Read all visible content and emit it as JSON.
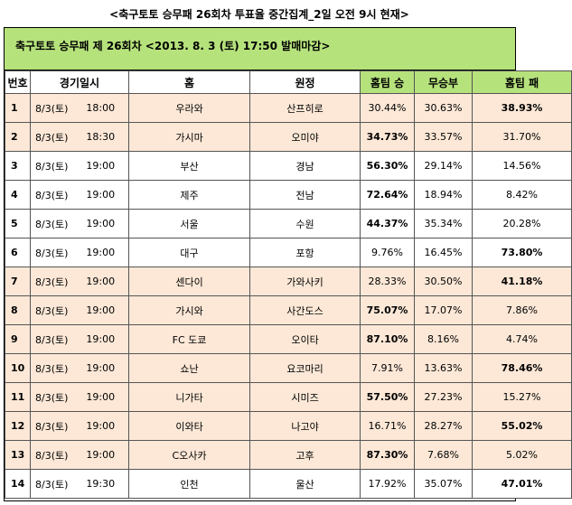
{
  "page_title": "<축구토토 승무패 26회차 투표율 중간집계_2일 오전 9시 현재>",
  "header": "축구토토 승무패 제 26회차 <2013. 8. 3 (토) 17:50 발매마감>",
  "columns": [
    "번호",
    "경기일시",
    "홈",
    "원정",
    "홈팀 승",
    "무승부",
    "홈팀 패"
  ],
  "rows": [
    {
      "no": "1",
      "date": "8/3(토)",
      "time": "18:00",
      "home": "우라와",
      "away": "산프히로",
      "win": "30.44%",
      "draw": "30.63%",
      "lose": "38.93%",
      "bold": "lose",
      "shade": "orange"
    },
    {
      "no": "2",
      "date": "8/3(토)",
      "time": "18:30",
      "home": "가시마",
      "away": "오미야",
      "win": "34.73%",
      "draw": "33.57%",
      "lose": "31.70%",
      "bold": "win",
      "shade": "orange"
    },
    {
      "no": "3",
      "date": "8/3(토)",
      "time": "19:00",
      "home": "부산",
      "away": "경남",
      "win": "56.30%",
      "draw": "29.14%",
      "lose": "14.56%",
      "bold": "win",
      "shade": "white"
    },
    {
      "no": "4",
      "date": "8/3(토)",
      "time": "19:00",
      "home": "제주",
      "away": "전남",
      "win": "72.64%",
      "draw": "18.94%",
      "lose": "8.42%",
      "bold": "win",
      "shade": "white"
    },
    {
      "no": "5",
      "date": "8/3(토)",
      "time": "19:00",
      "home": "서울",
      "away": "수원",
      "win": "44.37%",
      "draw": "35.34%",
      "lose": "20.28%",
      "bold": "win",
      "shade": "white"
    },
    {
      "no": "6",
      "date": "8/3(토)",
      "time": "19:00",
      "home": "대구",
      "away": "포항",
      "win": "9.76%",
      "draw": "16.45%",
      "lose": "73.80%",
      "bold": "lose",
      "shade": "white"
    },
    {
      "no": "7",
      "date": "8/3(토)",
      "time": "19:00",
      "home": "센다이",
      "away": "가와사키",
      "win": "28.33%",
      "draw": "30.50%",
      "lose": "41.18%",
      "bold": "lose",
      "shade": "orange"
    },
    {
      "no": "8",
      "date": "8/3(토)",
      "time": "19:00",
      "home": "가시와",
      "away": "사간도스",
      "win": "75.07%",
      "draw": "17.07%",
      "lose": "7.86%",
      "bold": "win",
      "shade": "orange"
    },
    {
      "no": "9",
      "date": "8/3(토)",
      "time": "19:00",
      "home": "FC 도쿄",
      "away": "오이타",
      "win": "87.10%",
      "draw": "8.16%",
      "lose": "4.74%",
      "bold": "win",
      "shade": "orange"
    },
    {
      "no": "10",
      "date": "8/3(토)",
      "time": "19:00",
      "home": "쇼난",
      "away": "요코마리",
      "win": "7.91%",
      "draw": "13.63%",
      "lose": "78.46%",
      "bold": "lose",
      "shade": "orange"
    },
    {
      "no": "11",
      "date": "8/3(토)",
      "time": "19:00",
      "home": "니가타",
      "away": "시미즈",
      "win": "57.50%",
      "draw": "27.23%",
      "lose": "15.27%",
      "bold": "win",
      "shade": "orange"
    },
    {
      "no": "12",
      "date": "8/3(토)",
      "time": "19:00",
      "home": "이와타",
      "away": "나고야",
      "win": "16.71%",
      "draw": "28.27%",
      "lose": "55.02%",
      "bold": "lose",
      "shade": "orange"
    },
    {
      "no": "13",
      "date": "8/3(토)",
      "time": "19:00",
      "home": "C오사카",
      "away": "고후",
      "win": "87.30%",
      "draw": "7.68%",
      "lose": "5.02%",
      "bold": "win",
      "shade": "orange"
    },
    {
      "no": "14",
      "date": "8/3(토)",
      "time": "19:30",
      "home": "인천",
      "away": "울산",
      "win": "17.92%",
      "draw": "35.07%",
      "lose": "47.01%",
      "bold": "lose",
      "shade": "white"
    }
  ]
}
